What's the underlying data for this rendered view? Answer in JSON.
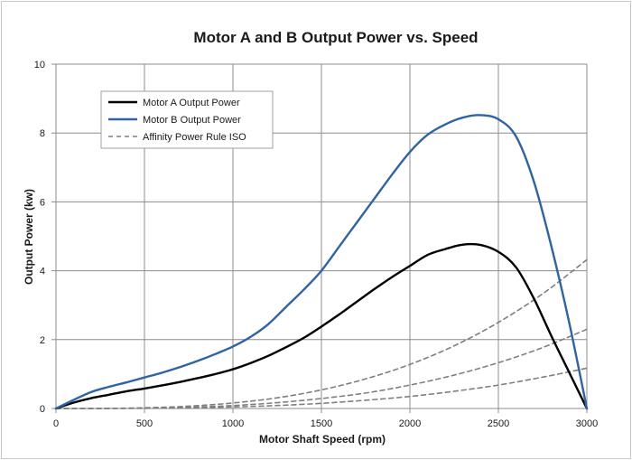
{
  "chart_data": {
    "type": "line",
    "title": "Motor A and B Output Power vs. Speed",
    "xlabel": "Motor Shaft Speed (rpm)",
    "ylabel": "Output Power (kw)",
    "xlim": [
      0,
      3000
    ],
    "ylim": [
      0,
      10
    ],
    "xticks": [
      0,
      500,
      1000,
      1500,
      2000,
      2500,
      3000
    ],
    "yticks": [
      0,
      2,
      4,
      6,
      8,
      10
    ],
    "grid": true,
    "legend_position": "top-left",
    "series": [
      {
        "name": "Motor A Output Power",
        "color": "#000000",
        "style": "solid",
        "show_in_legend": true,
        "x": [
          0,
          100,
          200,
          300,
          400,
          500,
          600,
          700,
          800,
          900,
          1000,
          1100,
          1200,
          1300,
          1400,
          1500,
          1600,
          1700,
          1800,
          1900,
          2000,
          2100,
          2200,
          2300,
          2400,
          2500,
          2600,
          2700,
          2800,
          2900,
          3000
        ],
        "y": [
          0,
          0.17,
          0.3,
          0.4,
          0.5,
          0.58,
          0.67,
          0.77,
          0.88,
          1.0,
          1.14,
          1.32,
          1.53,
          1.78,
          2.05,
          2.38,
          2.73,
          3.1,
          3.47,
          3.82,
          4.14,
          4.46,
          4.63,
          4.76,
          4.75,
          4.55,
          4.1,
          3.2,
          2.1,
          1.05,
          0
        ]
      },
      {
        "name": "Motor B Output Power",
        "color": "#2f63a8",
        "style": "solid",
        "show_in_legend": true,
        "x": [
          0,
          100,
          200,
          300,
          400,
          500,
          600,
          700,
          800,
          900,
          1000,
          1100,
          1200,
          1300,
          1400,
          1500,
          1600,
          1700,
          1800,
          1900,
          2000,
          2100,
          2200,
          2300,
          2400,
          2500,
          2600,
          2700,
          2800,
          2900,
          3000
        ],
        "y": [
          0,
          0.25,
          0.48,
          0.63,
          0.76,
          0.9,
          1.04,
          1.2,
          1.38,
          1.58,
          1.8,
          2.08,
          2.45,
          2.95,
          3.45,
          4.0,
          4.7,
          5.4,
          6.1,
          6.8,
          7.45,
          7.95,
          8.25,
          8.45,
          8.52,
          8.4,
          7.9,
          6.6,
          4.7,
          2.5,
          0
        ]
      },
      {
        "name": "Affinity Power Rule ISO",
        "color": "#7f7f7f",
        "style": "dashed",
        "show_in_legend": true,
        "x": [
          0,
          250,
          500,
          750,
          1000,
          1250,
          1500,
          1750,
          2000,
          2250,
          2500,
          2750,
          3000
        ],
        "y": [
          0,
          0.0025,
          0.02,
          0.068,
          0.16,
          0.31,
          0.54,
          0.86,
          1.28,
          1.82,
          2.5,
          3.33,
          4.32
        ]
      },
      {
        "name": "Affinity Power Rule ISO",
        "color": "#7f7f7f",
        "style": "dashed",
        "show_in_legend": false,
        "x": [
          0,
          250,
          500,
          750,
          1000,
          1250,
          1500,
          1750,
          2000,
          2250,
          2500,
          2750,
          3000
        ],
        "y": [
          0,
          0.0013,
          0.011,
          0.036,
          0.085,
          0.17,
          0.29,
          0.45,
          0.68,
          0.97,
          1.33,
          1.77,
          2.3
        ]
      },
      {
        "name": "Affinity Power Rule ISO",
        "color": "#7f7f7f",
        "style": "dashed",
        "show_in_legend": false,
        "x": [
          0,
          250,
          500,
          750,
          1000,
          1250,
          1500,
          1750,
          2000,
          2250,
          2500,
          2750,
          3000
        ],
        "y": [
          0,
          0.0007,
          0.0055,
          0.019,
          0.044,
          0.086,
          0.15,
          0.24,
          0.35,
          0.5,
          0.68,
          0.91,
          1.17
        ]
      }
    ]
  }
}
